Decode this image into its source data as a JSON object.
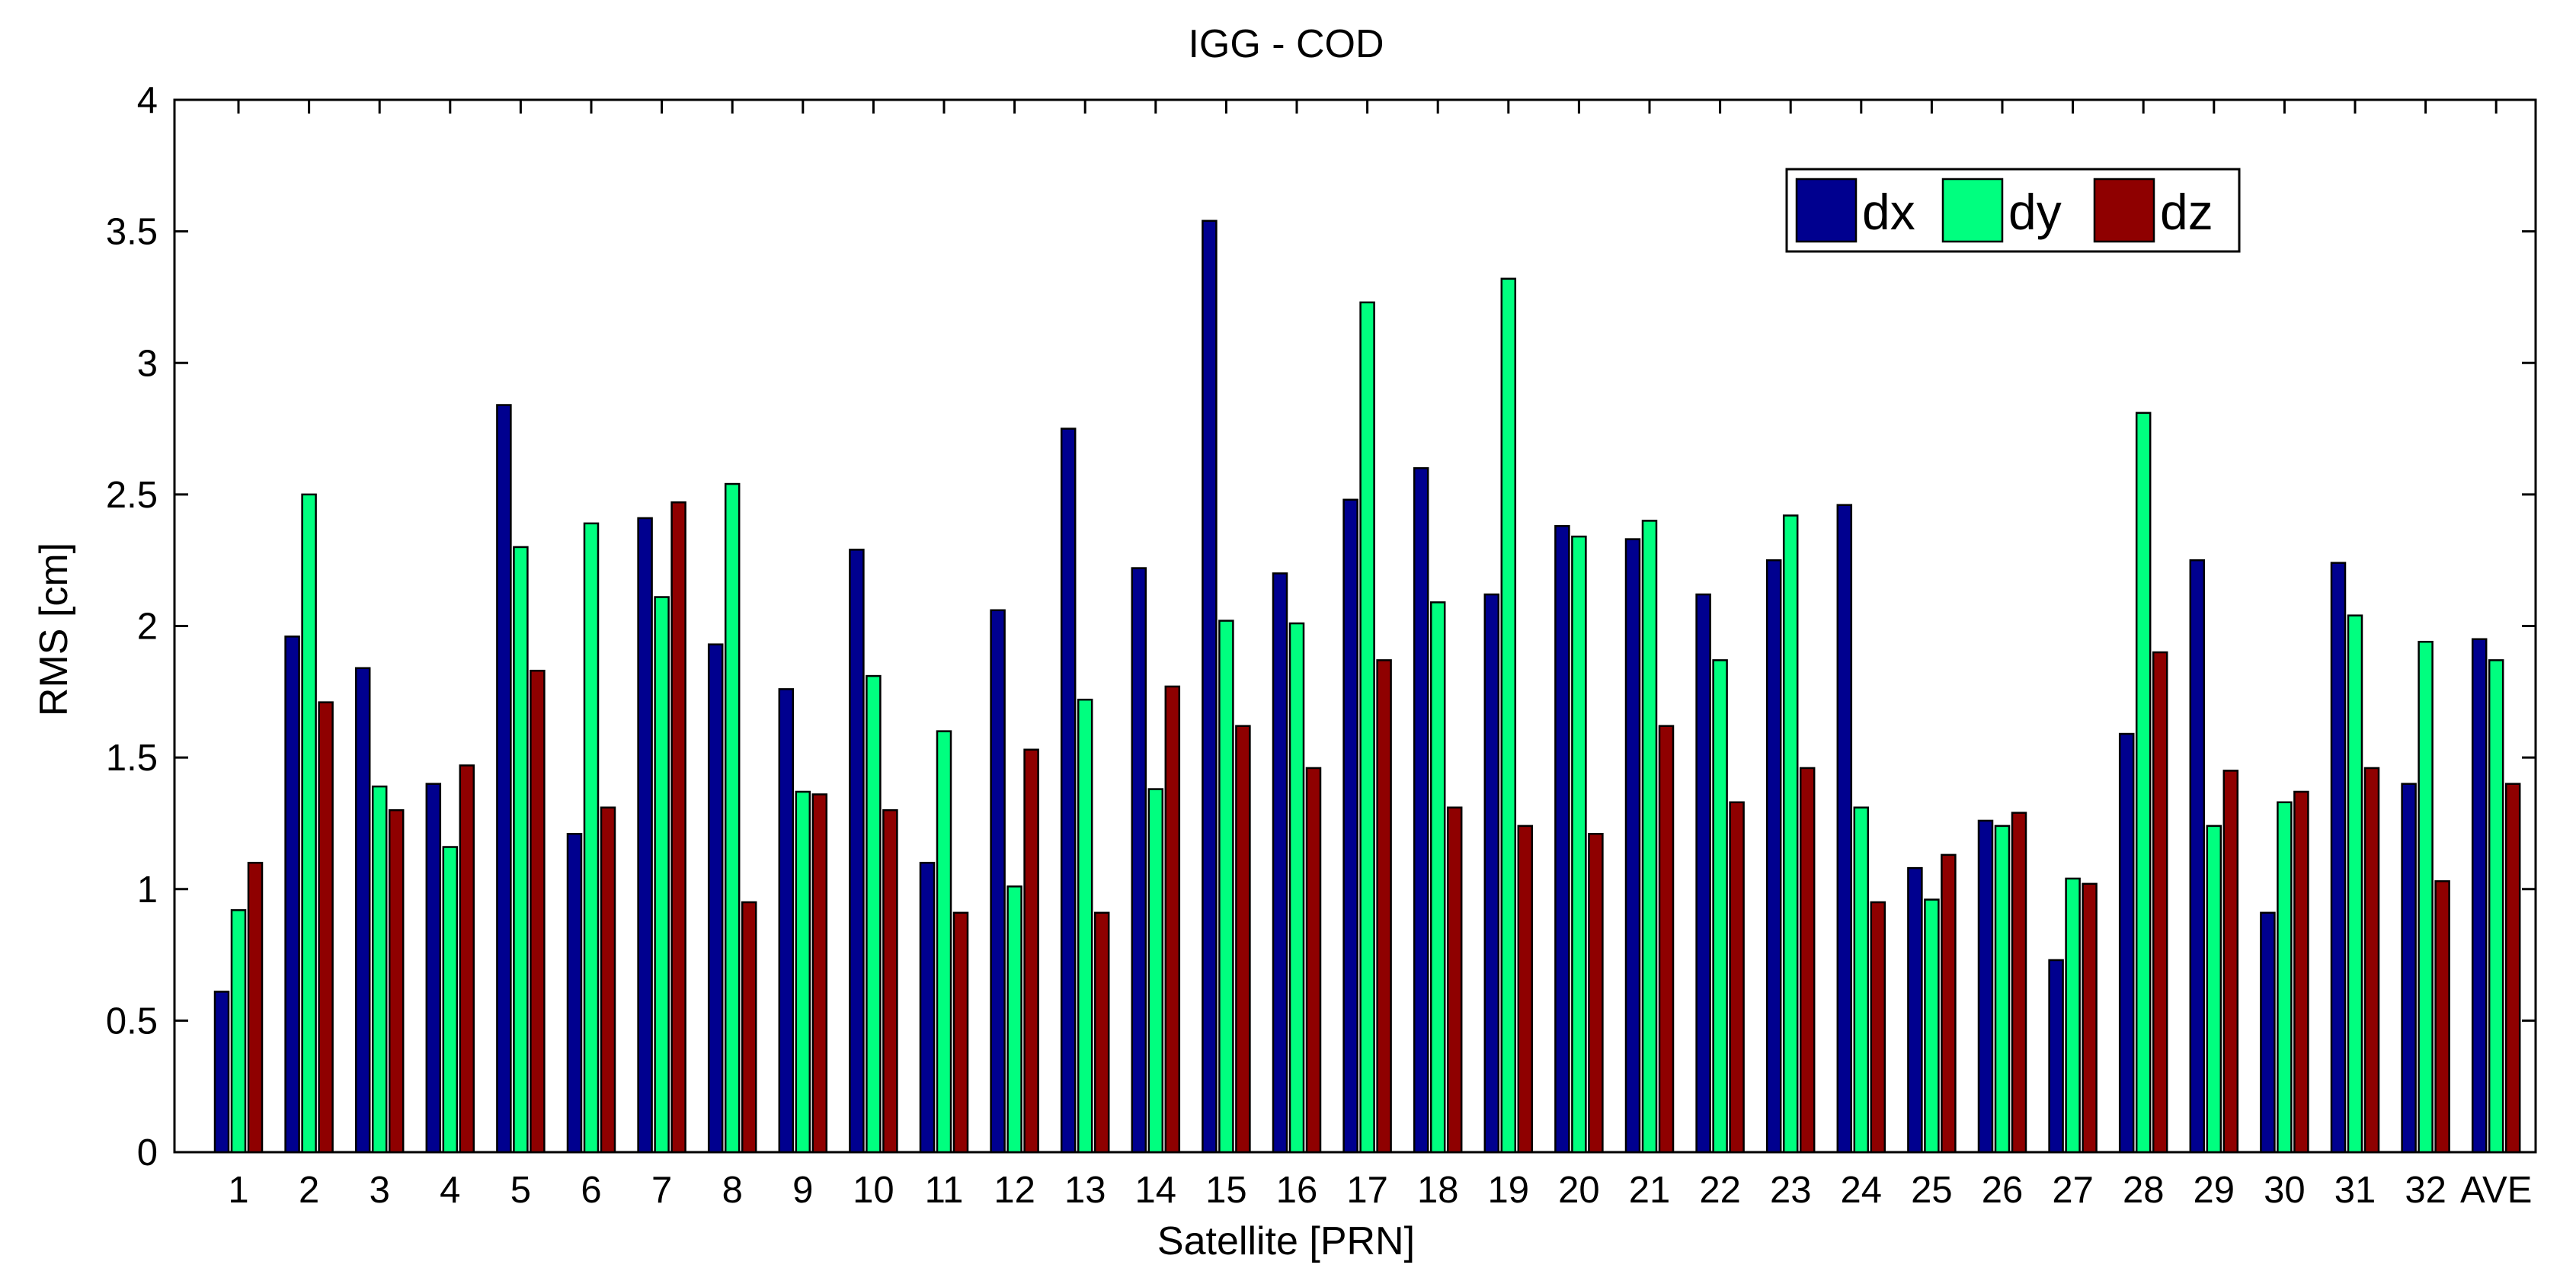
{
  "chart_data": {
    "type": "bar",
    "title": "IGG - COD",
    "xlabel": "Satellite [PRN]",
    "ylabel": "RMS [cm]",
    "ylim": [
      0,
      4
    ],
    "yticks": [
      0,
      0.5,
      1,
      1.5,
      2,
      2.5,
      3,
      3.5,
      4
    ],
    "ytick_labels": [
      "0",
      "0.5",
      "1",
      "1.5",
      "2",
      "2.5",
      "3",
      "3.5",
      "4"
    ],
    "grid": false,
    "legend_position": "top-right",
    "categories": [
      "1",
      "2",
      "3",
      "4",
      "5",
      "6",
      "7",
      "8",
      "9",
      "10",
      "11",
      "12",
      "13",
      "14",
      "15",
      "16",
      "17",
      "18",
      "19",
      "20",
      "21",
      "22",
      "23",
      "24",
      "25",
      "26",
      "27",
      "28",
      "29",
      "30",
      "31",
      "32",
      "AVE"
    ],
    "series": [
      {
        "name": "dx",
        "color": "#00008f",
        "values": [
          0.61,
          1.96,
          1.84,
          1.4,
          2.84,
          1.21,
          2.41,
          1.93,
          1.76,
          2.29,
          1.1,
          2.06,
          2.75,
          2.22,
          3.54,
          2.2,
          2.48,
          2.6,
          2.12,
          2.38,
          2.33,
          2.12,
          2.25,
          2.46,
          1.08,
          1.26,
          0.73,
          1.59,
          2.25,
          0.91,
          2.24,
          1.4,
          1.95
        ]
      },
      {
        "name": "dy",
        "color": "#00ff7f",
        "values": [
          0.92,
          2.5,
          1.39,
          1.16,
          2.3,
          2.39,
          2.11,
          2.54,
          1.37,
          1.81,
          1.6,
          1.01,
          1.72,
          1.38,
          2.02,
          2.01,
          3.23,
          2.09,
          3.32,
          2.34,
          2.4,
          1.87,
          2.42,
          1.31,
          0.96,
          1.24,
          1.04,
          2.81,
          1.24,
          1.33,
          2.04,
          1.94,
          1.87
        ]
      },
      {
        "name": "dz",
        "color": "#8f0000",
        "values": [
          1.1,
          1.71,
          1.3,
          1.47,
          1.83,
          1.31,
          2.47,
          0.95,
          1.36,
          1.3,
          0.91,
          1.53,
          0.91,
          1.77,
          1.62,
          1.46,
          1.87,
          1.31,
          1.24,
          1.21,
          1.62,
          1.33,
          1.46,
          0.95,
          1.13,
          1.29,
          1.02,
          1.9,
          1.45,
          1.37,
          1.46,
          1.03,
          1.4
        ]
      }
    ]
  }
}
